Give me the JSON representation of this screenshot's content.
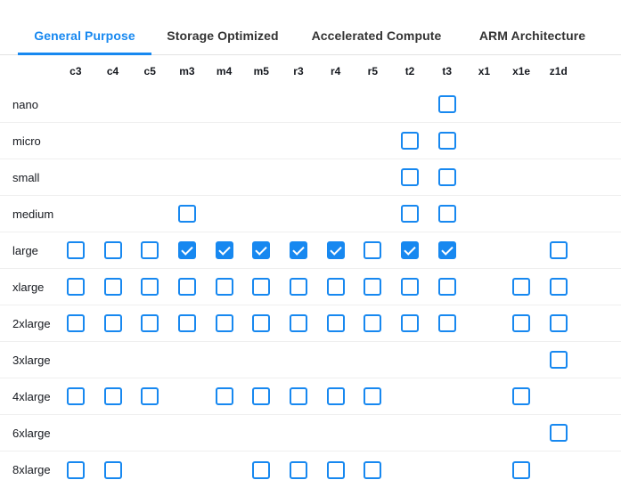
{
  "colors": {
    "accent": "#1788f0",
    "separator": "#efefef"
  },
  "tabs": [
    {
      "label": "General Purpose",
      "active": true
    },
    {
      "label": "Storage Optimized",
      "active": false
    },
    {
      "label": "Accelerated Compute",
      "active": false
    },
    {
      "label": "ARM Architecture",
      "active": false
    }
  ],
  "matrix": {
    "columns": [
      "c3",
      "c4",
      "c5",
      "m3",
      "m4",
      "m5",
      "r3",
      "r4",
      "r5",
      "t2",
      "t3",
      "x1",
      "x1e",
      "z1d"
    ],
    "rows": [
      {
        "label": "nano",
        "cells": [
          "none",
          "none",
          "none",
          "none",
          "none",
          "none",
          "none",
          "none",
          "none",
          "none",
          "unchecked",
          "none",
          "none",
          "none"
        ]
      },
      {
        "label": "micro",
        "cells": [
          "none",
          "none",
          "none",
          "none",
          "none",
          "none",
          "none",
          "none",
          "none",
          "unchecked",
          "unchecked",
          "none",
          "none",
          "none"
        ]
      },
      {
        "label": "small",
        "cells": [
          "none",
          "none",
          "none",
          "none",
          "none",
          "none",
          "none",
          "none",
          "none",
          "unchecked",
          "unchecked",
          "none",
          "none",
          "none"
        ]
      },
      {
        "label": "medium",
        "cells": [
          "none",
          "none",
          "none",
          "unchecked",
          "none",
          "none",
          "none",
          "none",
          "none",
          "unchecked",
          "unchecked",
          "none",
          "none",
          "none"
        ]
      },
      {
        "label": "large",
        "cells": [
          "unchecked",
          "unchecked",
          "unchecked",
          "checked",
          "checked",
          "checked",
          "checked",
          "checked",
          "unchecked",
          "checked",
          "checked",
          "none",
          "none",
          "unchecked"
        ]
      },
      {
        "label": "xlarge",
        "cells": [
          "unchecked",
          "unchecked",
          "unchecked",
          "unchecked",
          "unchecked",
          "unchecked",
          "unchecked",
          "unchecked",
          "unchecked",
          "unchecked",
          "unchecked",
          "none",
          "unchecked",
          "unchecked"
        ]
      },
      {
        "label": "2xlarge",
        "cells": [
          "unchecked",
          "unchecked",
          "unchecked",
          "unchecked",
          "unchecked",
          "unchecked",
          "unchecked",
          "unchecked",
          "unchecked",
          "unchecked",
          "unchecked",
          "none",
          "unchecked",
          "unchecked"
        ]
      },
      {
        "label": "3xlarge",
        "cells": [
          "none",
          "none",
          "none",
          "none",
          "none",
          "none",
          "none",
          "none",
          "none",
          "none",
          "none",
          "none",
          "none",
          "unchecked"
        ]
      },
      {
        "label": "4xlarge",
        "cells": [
          "unchecked",
          "unchecked",
          "unchecked",
          "none",
          "unchecked",
          "unchecked",
          "unchecked",
          "unchecked",
          "unchecked",
          "none",
          "none",
          "none",
          "unchecked",
          "none"
        ]
      },
      {
        "label": "6xlarge",
        "cells": [
          "none",
          "none",
          "none",
          "none",
          "none",
          "none",
          "none",
          "none",
          "none",
          "none",
          "none",
          "none",
          "none",
          "unchecked"
        ]
      },
      {
        "label": "8xlarge",
        "cells": [
          "unchecked",
          "unchecked",
          "none",
          "none",
          "none",
          "unchecked",
          "unchecked",
          "unchecked",
          "unchecked",
          "none",
          "none",
          "none",
          "unchecked",
          "none"
        ]
      }
    ]
  }
}
